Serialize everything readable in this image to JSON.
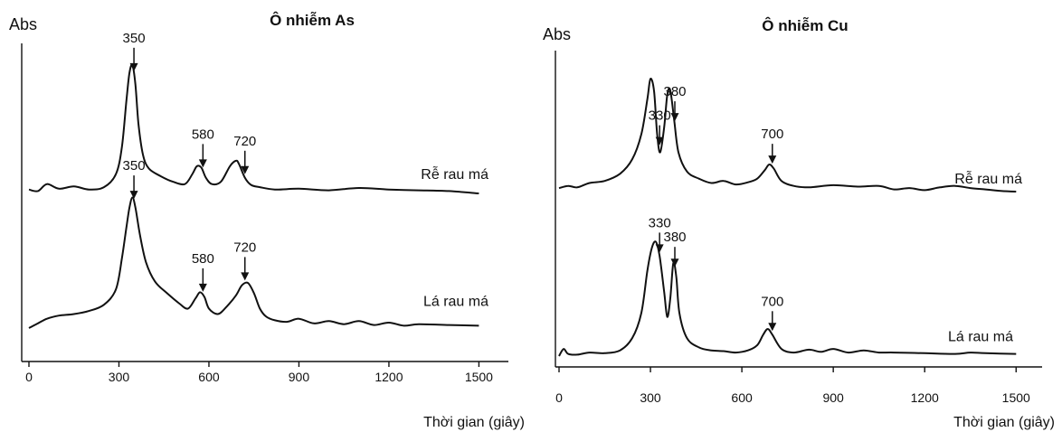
{
  "chart_data": [
    {
      "type": "line",
      "title": "Ô nhiễm As",
      "ylabel": "Abs",
      "xlabel": "Thời gian (giây)",
      "xlim": [
        0,
        1550
      ],
      "xticks": [
        0,
        300,
        600,
        900,
        1200,
        1500
      ],
      "series": [
        {
          "name": "Rễ rau má",
          "x": [
            0,
            30,
            60,
            100,
            150,
            200,
            250,
            290,
            310,
            325,
            335,
            345,
            355,
            365,
            380,
            400,
            440,
            480,
            520,
            545,
            560,
            575,
            590,
            610,
            640,
            670,
            690,
            700,
            720,
            740,
            770,
            820,
            900,
            1000,
            1100,
            1200,
            1300,
            1400,
            1500
          ],
          "y": [
            0.5,
            0.3,
            1.2,
            0.6,
            0.9,
            0.5,
            0.8,
            2.5,
            6,
            12,
            15.5,
            16.5,
            14,
            9,
            5,
            3.2,
            2.2,
            1.5,
            1.2,
            2.5,
            3.5,
            3.3,
            2,
            1.2,
            1.5,
            3.5,
            4.2,
            3.8,
            2,
            1.1,
            0.8,
            0.5,
            0.6,
            0.4,
            0.7,
            0.5,
            0.4,
            0.3,
            0
          ]
        },
        {
          "name": "Lá rau má",
          "x": [
            0,
            30,
            60,
            100,
            150,
            200,
            250,
            290,
            310,
            325,
            335,
            345,
            355,
            370,
            390,
            420,
            460,
            500,
            530,
            555,
            570,
            585,
            600,
            630,
            660,
            690,
            710,
            730,
            750,
            770,
            790,
            820,
            860,
            900,
            950,
            1000,
            1050,
            1100,
            1150,
            1200,
            1250,
            1300,
            1400,
            1500
          ],
          "y": [
            0,
            0.6,
            1.2,
            1.6,
            1.8,
            2.2,
            3,
            5,
            9,
            13,
            15.5,
            16.8,
            15.5,
            12,
            8.5,
            6,
            4.5,
            3.2,
            2.5,
            3.8,
            4.6,
            4,
            2.5,
            1.8,
            2.8,
            4.2,
            5.5,
            5.8,
            4.5,
            2.5,
            1.5,
            1,
            0.8,
            1.2,
            0.6,
            0.9,
            0.5,
            0.9,
            0.4,
            0.7,
            0.3,
            0.5,
            0.4,
            0.3
          ]
        }
      ],
      "annotations": [
        {
          "series": "Rễ rau má",
          "labels": [
            "350",
            "580",
            "720"
          ],
          "x": [
            350,
            580,
            720
          ]
        },
        {
          "series": "Lá rau má",
          "labels": [
            "350",
            "580",
            "720"
          ],
          "x": [
            350,
            580,
            720
          ]
        }
      ]
    },
    {
      "type": "line",
      "title": "Ô nhiễm Cu",
      "ylabel": "Abs",
      "xlabel": "Thời gian (giây)",
      "xlim": [
        0,
        1520
      ],
      "xticks": [
        0,
        300,
        600,
        900,
        1200,
        1500
      ],
      "series": [
        {
          "name": "Rễ rau má",
          "x": [
            0,
            30,
            60,
            100,
            150,
            200,
            240,
            270,
            290,
            300,
            312,
            322,
            332,
            345,
            355,
            365,
            378,
            392,
            420,
            460,
            500,
            540,
            580,
            620,
            650,
            675,
            690,
            705,
            730,
            770,
            820,
            900,
            980,
            1050,
            1100,
            1150,
            1200,
            1250,
            1300,
            1350,
            1400,
            1450,
            1500
          ],
          "y": [
            0.5,
            0.8,
            0.6,
            1.2,
            1.5,
            2.5,
            4.5,
            8,
            13,
            15.8,
            14,
            8,
            5.5,
            9,
            13.5,
            14.2,
            10,
            5.5,
            2.8,
            1.8,
            1.2,
            1.5,
            1,
            1.3,
            1.8,
            3,
            3.8,
            3.2,
            1.5,
            0.8,
            0.6,
            0.9,
            0.7,
            0.8,
            0.3,
            0.5,
            0.2,
            0.6,
            0.8,
            0.5,
            0.3,
            0.1,
            0
          ]
        },
        {
          "name": "Lá rau má",
          "x": [
            0,
            15,
            30,
            60,
            100,
            150,
            200,
            240,
            270,
            290,
            305,
            318,
            330,
            345,
            355,
            365,
            375,
            385,
            395,
            420,
            460,
            500,
            540,
            580,
            620,
            650,
            670,
            685,
            700,
            730,
            770,
            820,
            860,
            900,
            950,
            1000,
            1050,
            1100,
            1200,
            1300,
            1350,
            1400,
            1500
          ],
          "y": [
            0,
            1,
            0.3,
            0.2,
            0.5,
            0.4,
            0.8,
            2.5,
            6,
            12,
            15.2,
            16,
            14,
            9,
            5.5,
            8,
            13,
            11,
            6,
            2.5,
            1.2,
            0.8,
            0.7,
            0.5,
            0.8,
            1.5,
            3,
            3.8,
            3,
            1,
            0.5,
            0.9,
            0.6,
            1,
            0.5,
            0.8,
            0.5,
            0.5,
            0.4,
            0.3,
            0.5,
            0.4,
            0.3
          ]
        }
      ],
      "annotations": [
        {
          "series": "Rễ rau má",
          "labels": [
            "330",
            "380",
            "700"
          ],
          "x": [
            330,
            380,
            700
          ]
        },
        {
          "series": "Lá rau má",
          "labels": [
            "330",
            "380",
            "700"
          ],
          "x": [
            330,
            380,
            700
          ]
        }
      ]
    }
  ]
}
